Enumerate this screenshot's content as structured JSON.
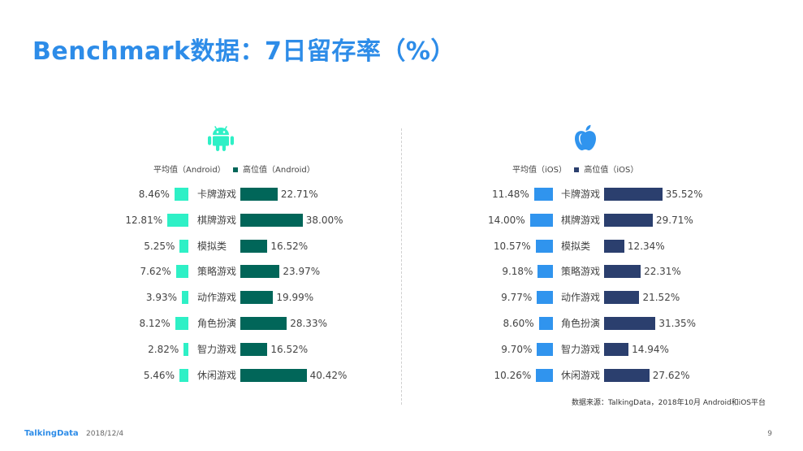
{
  "slide": {
    "title": "Benchmark数据：7日留存率（%）",
    "source": "数据来源：TalkingData，2018年10月 Android和iOS平台",
    "logo": "TalkingData",
    "date": "2018/12/4",
    "page_number": "9"
  },
  "colors": {
    "title": "#2d8ce8",
    "android_avg": "#2ef0c6",
    "android_high": "#016659",
    "ios_avg": "#3094ee",
    "ios_high": "#2b3f6e"
  },
  "chart_data": [
    {
      "type": "bar",
      "platform": "Android",
      "icon": "android-icon",
      "unit": "%",
      "categories": [
        "卡牌游戏",
        "棋牌游戏",
        "模拟类",
        "策略游戏",
        "动作游戏",
        "角色扮演",
        "智力游戏",
        "休闲游戏"
      ],
      "series": [
        {
          "name": "平均值（Android）",
          "values": [
            8.46,
            12.81,
            5.25,
            7.62,
            3.93,
            8.12,
            2.82,
            5.46
          ],
          "labels": [
            "8.46%",
            "12.81%",
            "5.25%",
            "7.62%",
            "3.93%",
            "8.12%",
            "2.82%",
            "5.46%"
          ]
        },
        {
          "name": "高位值（Android）",
          "values": [
            22.71,
            38.0,
            16.52,
            23.97,
            19.99,
            28.33,
            16.52,
            40.42
          ],
          "labels": [
            "22.71%",
            "38.00%",
            "16.52%",
            "23.97%",
            "19.99%",
            "28.33%",
            "16.52%",
            "40.42%"
          ]
        }
      ]
    },
    {
      "type": "bar",
      "platform": "iOS",
      "icon": "apple-icon",
      "unit": "%",
      "categories": [
        "卡牌游戏",
        "棋牌游戏",
        "模拟类",
        "策略游戏",
        "动作游戏",
        "角色扮演",
        "智力游戏",
        "休闲游戏"
      ],
      "series": [
        {
          "name": "平均值（iOS）",
          "values": [
            11.48,
            14.0,
            10.57,
            9.18,
            9.77,
            8.6,
            9.7,
            10.26
          ],
          "labels": [
            "11.48%",
            "14.00%",
            "10.57%",
            "9.18%",
            "9.77%",
            "8.60%",
            "9.70%",
            "10.26%"
          ]
        },
        {
          "name": "高位值（iOS）",
          "values": [
            35.52,
            29.71,
            12.34,
            22.31,
            21.52,
            31.35,
            14.94,
            27.62
          ],
          "labels": [
            "35.52%",
            "29.71%",
            "12.34%",
            "22.31%",
            "21.52%",
            "31.35%",
            "14.94%",
            "27.62%"
          ]
        }
      ]
    }
  ]
}
